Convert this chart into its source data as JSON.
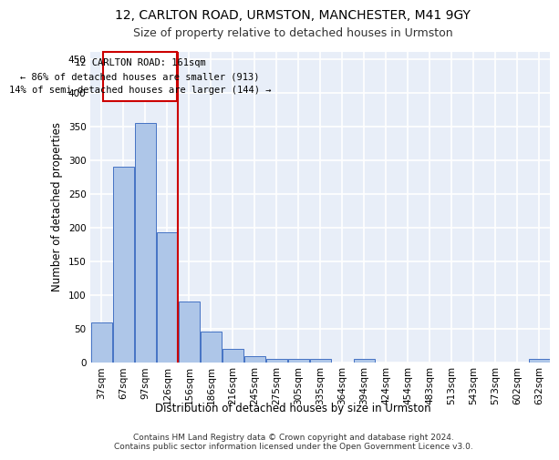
{
  "title1": "12, CARLTON ROAD, URMSTON, MANCHESTER, M41 9GY",
  "title2": "Size of property relative to detached houses in Urmston",
  "xlabel": "Distribution of detached houses by size in Urmston",
  "ylabel": "Number of detached properties",
  "categories": [
    "37sqm",
    "67sqm",
    "97sqm",
    "126sqm",
    "156sqm",
    "186sqm",
    "216sqm",
    "245sqm",
    "275sqm",
    "305sqm",
    "335sqm",
    "364sqm",
    "394sqm",
    "424sqm",
    "454sqm",
    "483sqm",
    "513sqm",
    "543sqm",
    "573sqm",
    "602sqm",
    "632sqm"
  ],
  "values": [
    59,
    290,
    355,
    193,
    90,
    46,
    20,
    9,
    5,
    5,
    5,
    0,
    5,
    0,
    0,
    0,
    0,
    0,
    0,
    0,
    5
  ],
  "bar_color": "#aec6e8",
  "bar_edge_color": "#4472c4",
  "annotation_line1": "12 CARLTON ROAD: 161sqm",
  "annotation_line2": "← 86% of detached houses are smaller (913)",
  "annotation_line3": "14% of semi-detached houses are larger (144) →",
  "annotation_box_color": "#ffffff",
  "annotation_box_edge_color": "#cc0000",
  "ref_line_color": "#cc0000",
  "ylim": [
    0,
    460
  ],
  "yticks": [
    0,
    50,
    100,
    150,
    200,
    250,
    300,
    350,
    400,
    450
  ],
  "footer1": "Contains HM Land Registry data © Crown copyright and database right 2024.",
  "footer2": "Contains public sector information licensed under the Open Government Licence v3.0.",
  "background_color": "#e8eef8",
  "grid_color": "#ffffff",
  "title1_fontsize": 10,
  "title2_fontsize": 9,
  "axis_label_fontsize": 8.5,
  "tick_fontsize": 7.5,
  "annotation_fontsize": 7.5,
  "footer_fontsize": 6.5
}
